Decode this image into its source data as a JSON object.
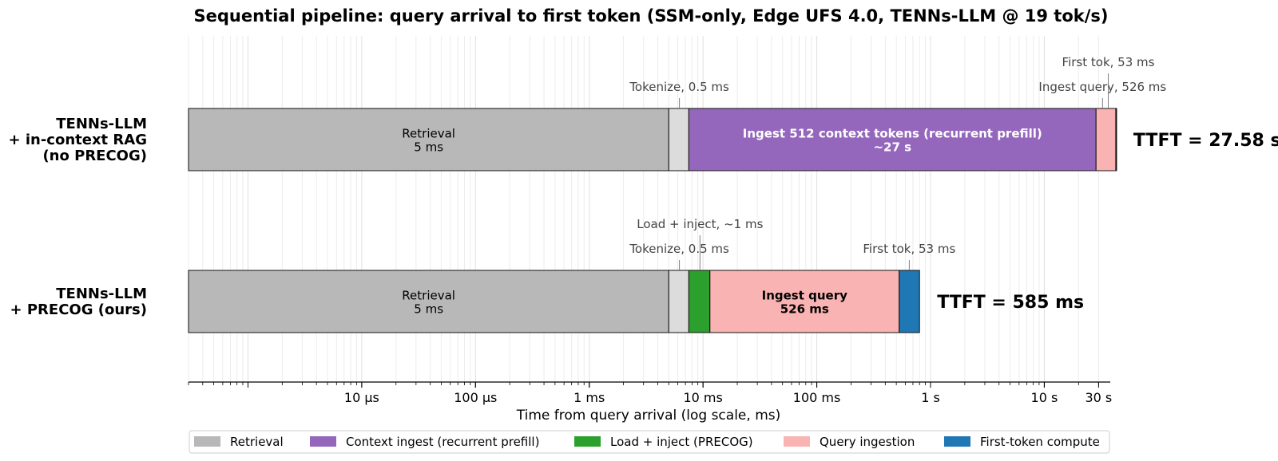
{
  "chart_data": {
    "type": "bar",
    "orientation": "horizontal-stacked",
    "title": "Sequential pipeline: query arrival to first token  (SSM-only, Edge UFS 4.0, TENNs-LLM @ 19 tok/s)",
    "xlabel": "Time from query arrival (log scale, ms)",
    "x_scale": "log",
    "xlim_ms": [
      0.0003,
      38000
    ],
    "x_ticks": [
      {
        "value": 0.01,
        "label": "10 µs"
      },
      {
        "value": 0.1,
        "label": "100 µs"
      },
      {
        "value": 1,
        "label": "1 ms"
      },
      {
        "value": 10,
        "label": "10 ms"
      },
      {
        "value": 100,
        "label": "100 ms"
      },
      {
        "value": 1000,
        "label": "1 s"
      },
      {
        "value": 10000,
        "label": "10 s"
      },
      {
        "value": 30000,
        "label": "30 s"
      }
    ],
    "grid": true,
    "legend_position": "bottom",
    "legend": [
      {
        "key": "retrieval",
        "label": "Retrieval"
      },
      {
        "key": "context",
        "label": "Context ingest (recurrent prefill)"
      },
      {
        "key": "load",
        "label": "Load + inject (PRECOG)"
      },
      {
        "key": "query",
        "label": "Query ingestion"
      },
      {
        "key": "first",
        "label": "First-token compute"
      }
    ],
    "colors": {
      "retrieval": "#b8b8b8",
      "tokenize": "#dcdcdc",
      "context": "#9467bd",
      "load": "#2ca02c",
      "query": "#f9b3b3",
      "first": "#1f77b4"
    },
    "rows": [
      {
        "label_lines": [
          "TENNs-LLM",
          "+ in-context RAG",
          "(no PRECOG)"
        ],
        "ttft": "TTFT = 27.58 s",
        "segments": [
          {
            "key": "retrieval",
            "start": 0.0003,
            "end": 5,
            "text": [
              "Retrieval",
              "5 ms"
            ],
            "bold": false
          },
          {
            "key": "tokenize",
            "start": 5,
            "end": 7.5,
            "text": [],
            "bold": false
          },
          {
            "key": "context",
            "start": 7.5,
            "end": 28500,
            "text": [
              "Ingest 512 context tokens (recurrent prefill)",
              "~27 s"
            ],
            "bold": true
          },
          {
            "key": "query",
            "start": 28500,
            "end": 42500,
            "text": [],
            "bold": false
          },
          {
            "key": "first",
            "start": 42500,
            "end": 38000,
            "text": [],
            "bold": false
          }
        ],
        "annotations": [
          {
            "text": "Tokenize, 0.5 ms",
            "at": 6.2,
            "level": 1
          },
          {
            "text": "Ingest query, 526 ms",
            "at": 32500,
            "level": 1
          },
          {
            "text": "First tok, 53 ms",
            "at": 36500,
            "level": 2
          }
        ]
      },
      {
        "label_lines": [
          "TENNs-LLM",
          "+ PRECOG (ours)"
        ],
        "ttft": "TTFT = 585 ms",
        "segments": [
          {
            "key": "retrieval",
            "start": 0.0003,
            "end": 5,
            "text": [
              "Retrieval",
              "5 ms"
            ],
            "bold": false
          },
          {
            "key": "tokenize",
            "start": 5,
            "end": 7.5,
            "text": [],
            "bold": false
          },
          {
            "key": "load",
            "start": 7.5,
            "end": 11.5,
            "text": [],
            "bold": false
          },
          {
            "key": "query",
            "start": 11.5,
            "end": 530,
            "text": [
              "Ingest query",
              "526 ms"
            ],
            "bold": true
          },
          {
            "key": "first",
            "start": 530,
            "end": 800,
            "text": [],
            "bold": false
          }
        ],
        "annotations": [
          {
            "text": "Tokenize, 0.5 ms",
            "at": 6.2,
            "level": 1
          },
          {
            "text": "Load + inject, ~1 ms",
            "at": 9.4,
            "level": 2
          },
          {
            "text": "First tok, 53 ms",
            "at": 650,
            "level": 1
          }
        ]
      }
    ]
  }
}
